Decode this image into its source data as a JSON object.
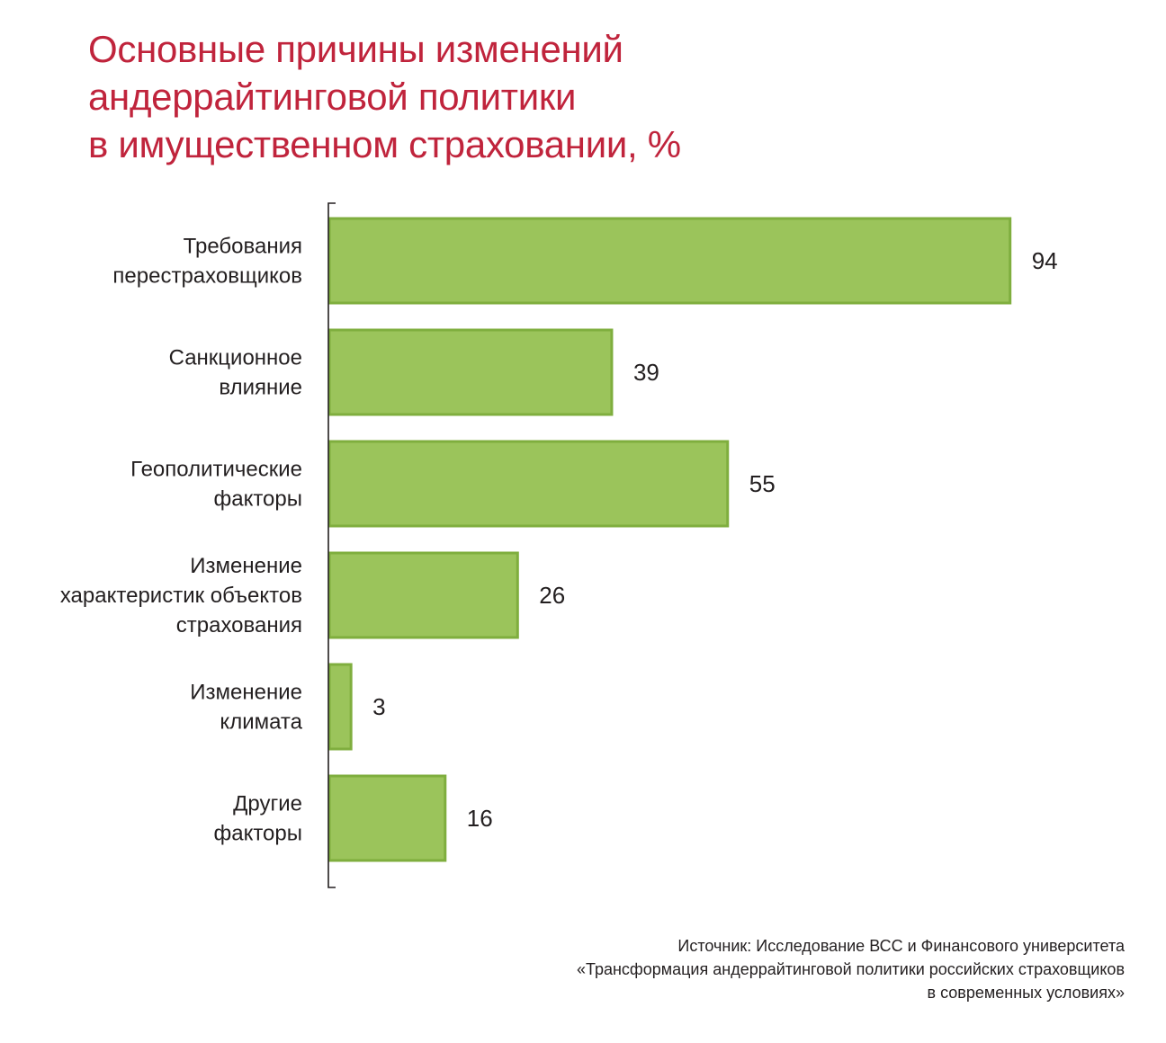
{
  "title": {
    "lines": [
      "Основные причины изменений",
      "андеррайтинговой политики",
      "в имущественном страховании, %"
    ]
  },
  "colors": {
    "title": "#c0243c",
    "bar_fill": "#9bc45b",
    "bar_stroke": "#7fae3e",
    "text": "#231f20",
    "axis": "#231f20"
  },
  "chart_data": {
    "type": "bar",
    "orientation": "horizontal",
    "title": "Основные причины изменений андеррайтинговой политики в имущественном страховании, %",
    "categories": [
      [
        "Требования",
        "перестраховщиков"
      ],
      [
        "Санкционное",
        "влияние"
      ],
      [
        "Геополитические",
        "факторы"
      ],
      [
        "Изменение",
        "характеристик объектов",
        "страхования"
      ],
      [
        "Изменение",
        "климата"
      ],
      [
        "Другие",
        "факторы"
      ]
    ],
    "values": [
      94,
      39,
      55,
      26,
      3,
      16
    ],
    "value_labels": [
      "94",
      "39",
      "55",
      "26",
      "3",
      "16"
    ],
    "xlim": [
      0,
      100
    ],
    "grid": false,
    "legend": "none"
  },
  "source": {
    "lines": [
      "Источник: Исследование ВСС и Финансового университета",
      "«Трансформация андеррайтинговой политики российских страховщиков",
      "в современных условиях»"
    ]
  }
}
